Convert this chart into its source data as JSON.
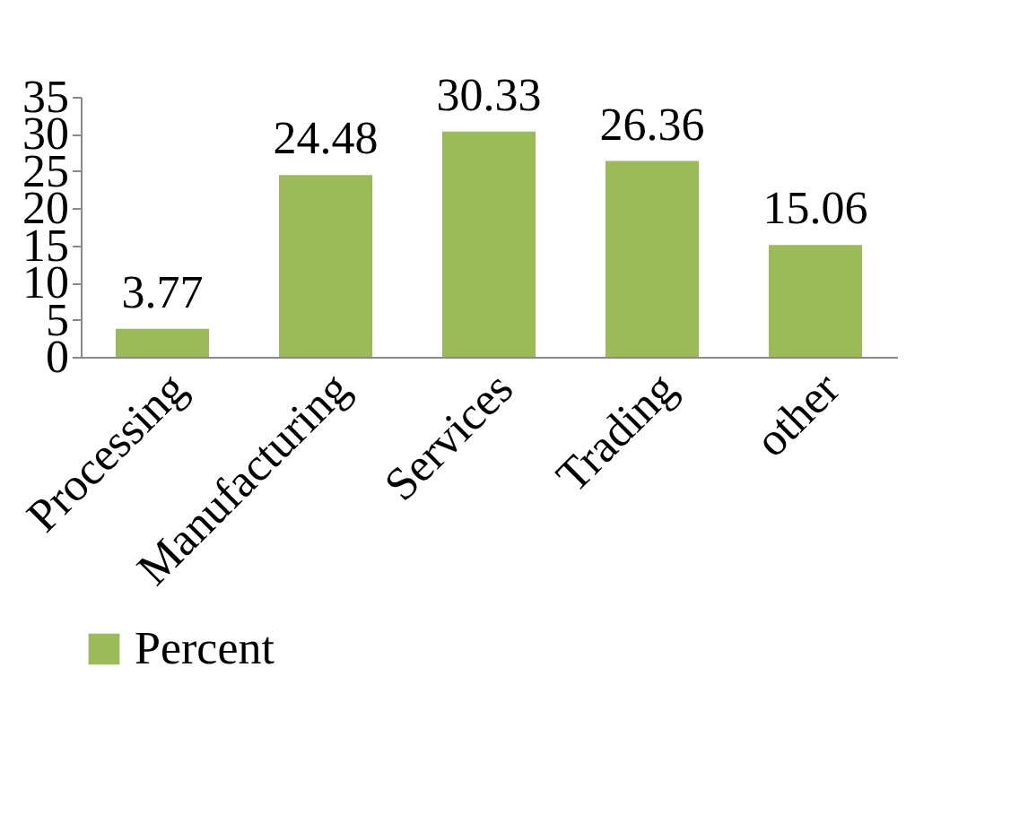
{
  "chart_data": {
    "type": "bar",
    "categories": [
      "Processing",
      "Manufacturing",
      "Services",
      "Trading",
      "other"
    ],
    "series": [
      {
        "name": "Percent",
        "color": "#9bbb59",
        "values": [
          3.77,
          24.48,
          30.33,
          26.36,
          15.06
        ]
      }
    ],
    "ylim": [
      0,
      35
    ],
    "yticks": [
      0,
      5,
      10,
      15,
      20,
      25,
      30,
      35
    ],
    "data_labels": true,
    "grid": false,
    "legend": "bottom"
  }
}
